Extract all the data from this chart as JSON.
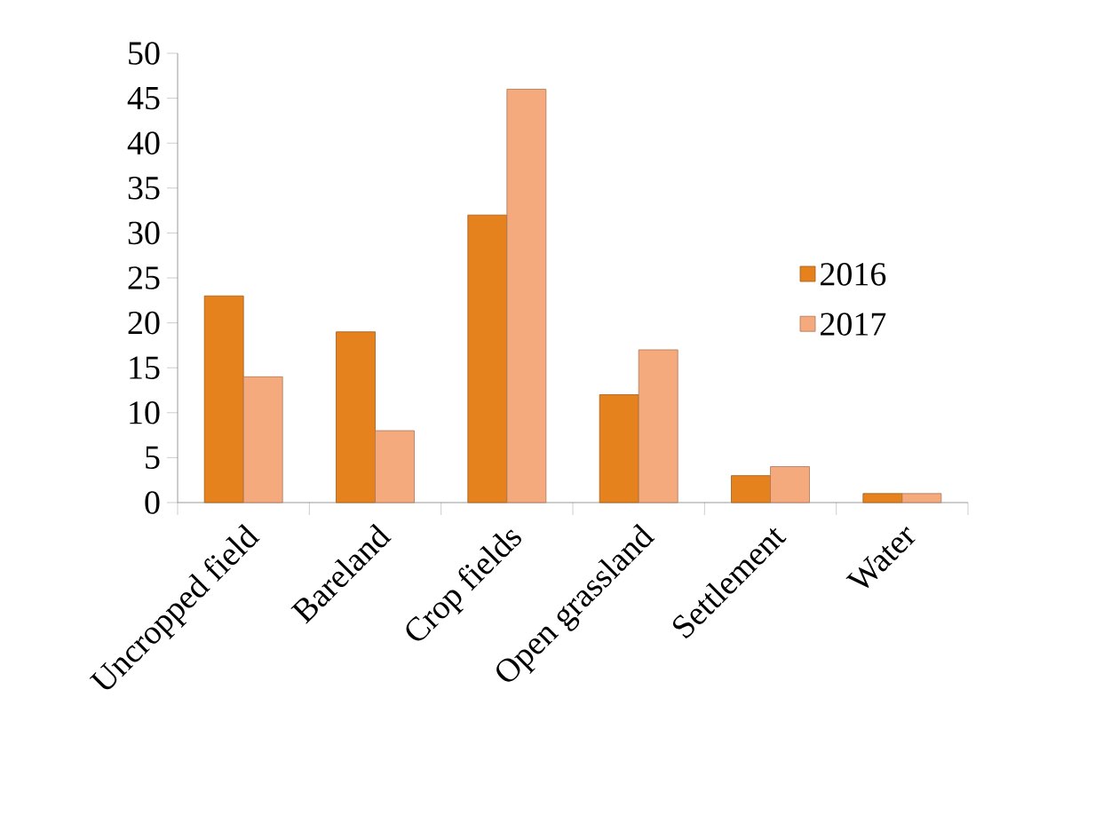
{
  "chart_data": {
    "type": "bar",
    "categories": [
      "Uncropped field",
      "Bareland",
      "Crop fields",
      "Open grassland",
      "Settlement",
      "Water"
    ],
    "series": [
      {
        "name": "2016",
        "color": "#e6821e",
        "values": [
          23,
          19,
          32,
          12,
          3,
          1
        ]
      },
      {
        "name": "2017",
        "color": "#f4aa7c",
        "values": [
          14,
          8,
          46,
          17,
          4,
          1
        ]
      }
    ],
    "ylim": [
      0,
      50
    ],
    "yticks": [
      0,
      5,
      10,
      15,
      20,
      25,
      30,
      35,
      40,
      45,
      50
    ],
    "legend": "right",
    "grid": false
  }
}
